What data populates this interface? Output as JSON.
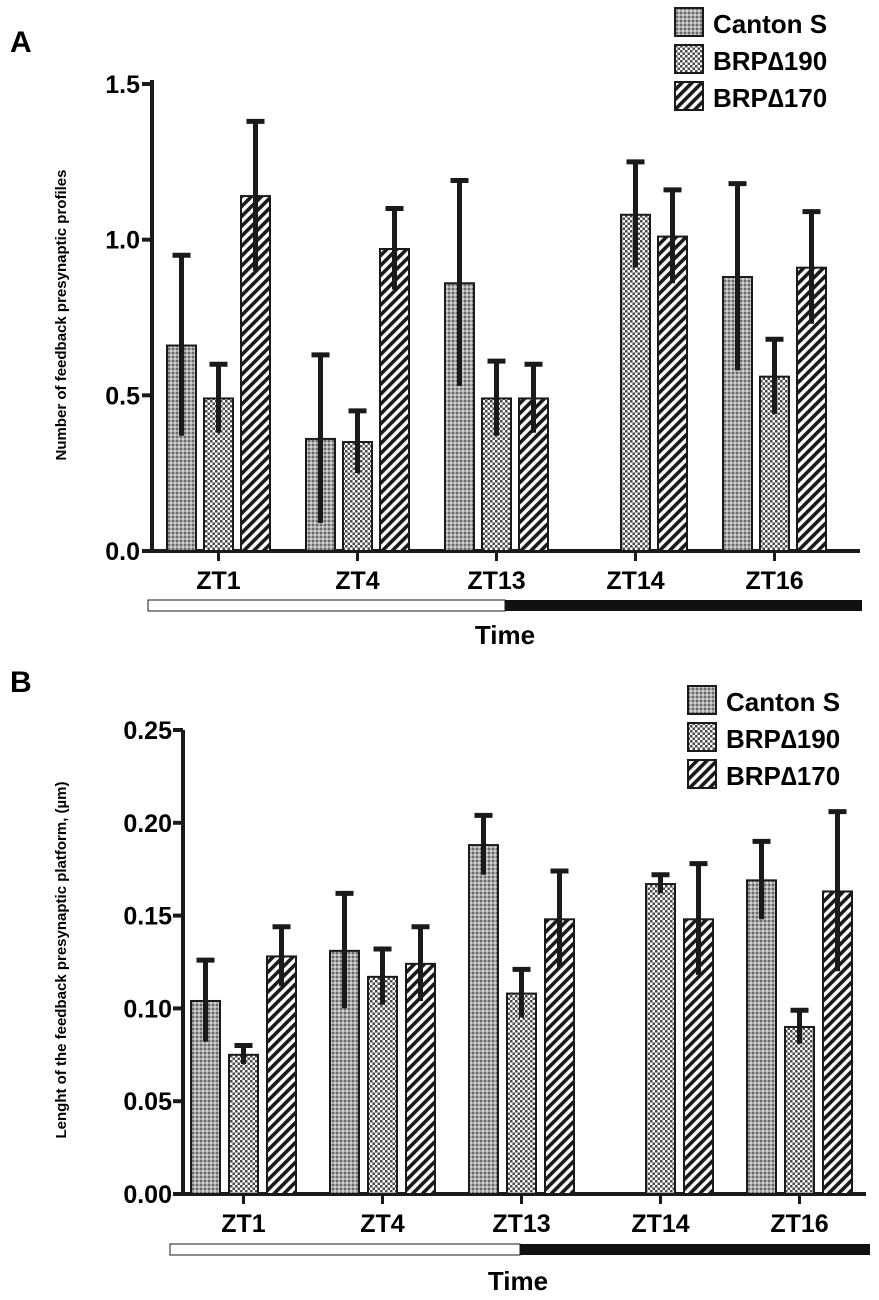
{
  "figure": {
    "colors": {
      "ink": "#1a1a1a",
      "bar_fill_solid": "#9a9a9a",
      "background": "#ffffff"
    },
    "light_dark_bar": {
      "light_color": "#ffffff",
      "dark_color": "#111111"
    }
  },
  "chart_data": [
    {
      "panel": "A",
      "type": "bar",
      "title": "",
      "xlabel": "Time",
      "ylabel": "Number of feedback presynaptic profiles",
      "categories": [
        "ZT1",
        "ZT4",
        "ZT13",
        "ZT14",
        "ZT16"
      ],
      "ylim": [
        0,
        1.5
      ],
      "yticks": [
        "0.0",
        "0.5",
        "1.0",
        "1.5"
      ],
      "ytick_values": [
        0,
        0.5,
        1.0,
        1.5
      ],
      "series": [
        {
          "name": "Canton S",
          "pattern": "dots",
          "values": [
            0.66,
            0.36,
            0.86,
            null,
            0.88
          ],
          "errors": [
            0.29,
            0.27,
            0.33,
            null,
            0.3
          ]
        },
        {
          "name": "BRP∆190",
          "pattern": "checker",
          "values": [
            0.49,
            0.35,
            0.49,
            1.08,
            0.56
          ],
          "errors": [
            0.11,
            0.1,
            0.12,
            0.17,
            0.12
          ]
        },
        {
          "name": "BRP∆170",
          "pattern": "hatch",
          "values": [
            1.14,
            0.97,
            0.49,
            1.01,
            0.91
          ],
          "errors": [
            0.24,
            0.13,
            0.11,
            0.15,
            0.18
          ]
        }
      ],
      "legend": "top-right",
      "light_dark_split_after": "ZT13"
    },
    {
      "panel": "B",
      "type": "bar",
      "title": "",
      "xlabel": "Time",
      "ylabel": "Lenght of the feedback presynaptic platform, (µm)",
      "categories": [
        "ZT1",
        "ZT4",
        "ZT13",
        "ZT14",
        "ZT16"
      ],
      "ylim": [
        0,
        0.25
      ],
      "yticks": [
        "0.00",
        "0.05",
        "0.10",
        "0.15",
        "0.20",
        "0.25"
      ],
      "ytick_values": [
        0,
        0.05,
        0.1,
        0.15,
        0.2,
        0.25
      ],
      "series": [
        {
          "name": "Canton S",
          "pattern": "dots",
          "values": [
            0.104,
            0.131,
            0.188,
            null,
            0.169
          ],
          "errors": [
            0.022,
            0.031,
            0.016,
            null,
            0.021
          ]
        },
        {
          "name": "BRP∆190",
          "pattern": "checker",
          "values": [
            0.075,
            0.117,
            0.108,
            0.167,
            0.09
          ],
          "errors": [
            0.005,
            0.015,
            0.013,
            0.005,
            0.009
          ]
        },
        {
          "name": "BRP∆170",
          "pattern": "hatch",
          "values": [
            0.128,
            0.124,
            0.148,
            0.148,
            0.163
          ],
          "errors": [
            0.016,
            0.02,
            0.026,
            0.03,
            0.043
          ]
        }
      ],
      "legend": "top-right",
      "light_dark_split_after": "ZT13"
    }
  ]
}
